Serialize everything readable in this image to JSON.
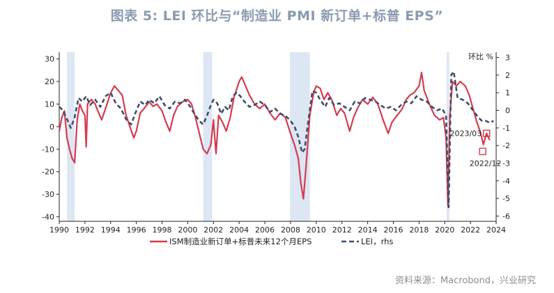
{
  "title": "图表 5:  LEI 环比与“制造业 PMI 新订单+标普 EPS”",
  "source": "资料来源：Macrobond，兴业研究",
  "chart_data": {
    "type": "line",
    "x_range": [
      1990,
      2024
    ],
    "x_ticks": [
      "1990",
      "1992",
      "1994",
      "1996",
      "1998",
      "2000",
      "2002",
      "2004",
      "2006",
      "2008",
      "2010",
      "2012",
      "2014",
      "2016",
      "2018",
      "2020",
      "2022",
      "2024"
    ],
    "left_axis": {
      "ylim": [
        -42,
        33
      ],
      "ticks": [
        "30",
        "20",
        "10",
        "0",
        "-10",
        "-20",
        "-30",
        "-40"
      ],
      "tick_values": [
        30,
        20,
        10,
        0,
        -10,
        -20,
        -30,
        -40
      ]
    },
    "right_axis": {
      "label": "环比 %",
      "ylim": [
        -6.3,
        3.3
      ],
      "ticks": [
        "3",
        "2",
        "1",
        "0",
        "-1",
        "-2",
        "-3",
        "-4",
        "-5",
        "-6"
      ],
      "tick_values": [
        3,
        2,
        1,
        0,
        -1,
        -2,
        -3,
        -4,
        -5,
        -6
      ]
    },
    "recessions": [
      [
        1990.6,
        1991.2
      ],
      [
        2001.2,
        2001.9
      ],
      [
        2007.95,
        2009.5
      ],
      [
        2020.15,
        2020.35
      ]
    ],
    "series": [
      {
        "name": "ISM制造业新订单+标普未来12个月EPS",
        "axis": "left",
        "color": "#d23c50",
        "style": "solid",
        "points": [
          [
            1990.0,
            -2
          ],
          [
            1990.2,
            4
          ],
          [
            1990.4,
            7
          ],
          [
            1990.6,
            -5
          ],
          [
            1990.8,
            -10
          ],
          [
            1991.0,
            -14
          ],
          [
            1991.2,
            -16
          ],
          [
            1991.4,
            3
          ],
          [
            1991.6,
            10
          ],
          [
            1991.8,
            7
          ],
          [
            1992.0,
            5
          ],
          [
            1992.1,
            -9
          ],
          [
            1992.2,
            10
          ],
          [
            1992.5,
            12
          ],
          [
            1992.8,
            10
          ],
          [
            1993.0,
            7
          ],
          [
            1993.3,
            3
          ],
          [
            1993.6,
            8
          ],
          [
            1994.0,
            15
          ],
          [
            1994.3,
            18
          ],
          [
            1994.6,
            16
          ],
          [
            1994.9,
            14
          ],
          [
            1995.2,
            5
          ],
          [
            1995.5,
            0
          ],
          [
            1995.8,
            -5
          ],
          [
            1996.0,
            -2
          ],
          [
            1996.3,
            6
          ],
          [
            1996.6,
            8
          ],
          [
            1997.0,
            11
          ],
          [
            1997.3,
            9
          ],
          [
            1997.6,
            10
          ],
          [
            1998.0,
            7
          ],
          [
            1998.3,
            2
          ],
          [
            1998.6,
            -2
          ],
          [
            1998.9,
            5
          ],
          [
            1999.2,
            9
          ],
          [
            1999.6,
            11
          ],
          [
            2000.0,
            12
          ],
          [
            2000.3,
            10
          ],
          [
            2000.6,
            4
          ],
          [
            2000.9,
            -3
          ],
          [
            2001.2,
            -10
          ],
          [
            2001.5,
            -12
          ],
          [
            2001.8,
            -8
          ],
          [
            2002.0,
            3
          ],
          [
            2002.2,
            -12
          ],
          [
            2002.4,
            5
          ],
          [
            2002.7,
            2
          ],
          [
            2003.0,
            -2
          ],
          [
            2003.3,
            4
          ],
          [
            2003.6,
            13
          ],
          [
            2004.0,
            20
          ],
          [
            2004.2,
            22
          ],
          [
            2004.5,
            18
          ],
          [
            2004.8,
            14
          ],
          [
            2005.2,
            10
          ],
          [
            2005.6,
            8
          ],
          [
            2006.0,
            10
          ],
          [
            2006.4,
            6
          ],
          [
            2006.8,
            3
          ],
          [
            2007.2,
            6
          ],
          [
            2007.6,
            4
          ],
          [
            2008.0,
            -3
          ],
          [
            2008.3,
            -8
          ],
          [
            2008.6,
            -14
          ],
          [
            2008.8,
            -25
          ],
          [
            2009.0,
            -32
          ],
          [
            2009.2,
            -18
          ],
          [
            2009.5,
            5
          ],
          [
            2009.8,
            15
          ],
          [
            2010.0,
            18
          ],
          [
            2010.3,
            17
          ],
          [
            2010.6,
            12
          ],
          [
            2010.9,
            15
          ],
          [
            2011.2,
            12
          ],
          [
            2011.6,
            5
          ],
          [
            2011.9,
            8
          ],
          [
            2012.2,
            6
          ],
          [
            2012.6,
            -2
          ],
          [
            2012.9,
            4
          ],
          [
            2013.2,
            8
          ],
          [
            2013.6,
            12
          ],
          [
            2014.0,
            10
          ],
          [
            2014.4,
            13
          ],
          [
            2014.8,
            10
          ],
          [
            2015.2,
            3
          ],
          [
            2015.6,
            -3
          ],
          [
            2015.9,
            2
          ],
          [
            2016.3,
            5
          ],
          [
            2016.7,
            8
          ],
          [
            2017.0,
            12
          ],
          [
            2017.3,
            14
          ],
          [
            2017.6,
            15
          ],
          [
            2018.0,
            18
          ],
          [
            2018.2,
            24
          ],
          [
            2018.4,
            16
          ],
          [
            2018.8,
            10
          ],
          [
            2019.2,
            5
          ],
          [
            2019.6,
            3
          ],
          [
            2019.9,
            4
          ],
          [
            2020.1,
            -5
          ],
          [
            2020.25,
            -35
          ],
          [
            2020.4,
            5
          ],
          [
            2020.6,
            20
          ],
          [
            2020.9,
            18
          ],
          [
            2021.2,
            20
          ],
          [
            2021.6,
            18
          ],
          [
            2021.9,
            14
          ],
          [
            2022.2,
            8
          ],
          [
            2022.5,
            2
          ],
          [
            2022.8,
            -3
          ],
          [
            2023.0,
            -8
          ],
          [
            2023.25,
            -3
          ],
          [
            2023.5,
            -6
          ]
        ]
      },
      {
        "name": "LEI，rhs",
        "axis": "right",
        "color": "#3f4d68",
        "style": "dashed",
        "points": [
          [
            1990.0,
            0.2
          ],
          [
            1990.3,
            0.0
          ],
          [
            1990.6,
            -0.5
          ],
          [
            1990.9,
            -1.0
          ],
          [
            1991.2,
            -0.4
          ],
          [
            1991.5,
            0.7
          ],
          [
            1991.8,
            0.5
          ],
          [
            1992.1,
            0.8
          ],
          [
            1992.4,
            0.3
          ],
          [
            1992.8,
            0.6
          ],
          [
            1993.2,
            0.2
          ],
          [
            1993.6,
            0.8
          ],
          [
            1994.0,
            1.0
          ],
          [
            1994.4,
            0.4
          ],
          [
            1994.8,
            0.1
          ],
          [
            1995.2,
            -0.5
          ],
          [
            1995.6,
            -0.8
          ],
          [
            1995.9,
            -0.2
          ],
          [
            1996.3,
            0.5
          ],
          [
            1996.7,
            0.3
          ],
          [
            1997.0,
            0.6
          ],
          [
            1997.4,
            0.4
          ],
          [
            1997.8,
            0.8
          ],
          [
            1998.2,
            0.3
          ],
          [
            1998.6,
            0.1
          ],
          [
            1999.0,
            0.5
          ],
          [
            1999.4,
            0.4
          ],
          [
            1999.8,
            0.6
          ],
          [
            2000.2,
            0.2
          ],
          [
            2000.6,
            -0.3
          ],
          [
            2000.9,
            -0.6
          ],
          [
            2001.2,
            -0.8
          ],
          [
            2001.5,
            -0.3
          ],
          [
            2001.8,
            0.3
          ],
          [
            2002.0,
            0.6
          ],
          [
            2002.3,
            0.4
          ],
          [
            2002.6,
            -0.2
          ],
          [
            2002.9,
            0.2
          ],
          [
            2003.2,
            0.0
          ],
          [
            2003.5,
            0.8
          ],
          [
            2003.8,
            1.0
          ],
          [
            2004.1,
            0.8
          ],
          [
            2004.4,
            0.5
          ],
          [
            2004.8,
            0.2
          ],
          [
            2005.2,
            0.3
          ],
          [
            2005.6,
            0.5
          ],
          [
            2006.0,
            0.3
          ],
          [
            2006.4,
            -0.1
          ],
          [
            2006.8,
            0.1
          ],
          [
            2007.2,
            -0.2
          ],
          [
            2007.6,
            -0.3
          ],
          [
            2008.0,
            -0.6
          ],
          [
            2008.3,
            -0.9
          ],
          [
            2008.6,
            -1.5
          ],
          [
            2008.9,
            -2.4
          ],
          [
            2009.1,
            -2.2
          ],
          [
            2009.4,
            -0.5
          ],
          [
            2009.7,
            1.1
          ],
          [
            2010.0,
            1.0
          ],
          [
            2010.3,
            0.6
          ],
          [
            2010.7,
            0.2
          ],
          [
            2011.0,
            0.7
          ],
          [
            2011.4,
            0.3
          ],
          [
            2011.8,
            0.4
          ],
          [
            2012.2,
            0.2
          ],
          [
            2012.6,
            0.0
          ],
          [
            2013.0,
            0.5
          ],
          [
            2013.4,
            0.4
          ],
          [
            2013.8,
            0.7
          ],
          [
            2014.2,
            0.6
          ],
          [
            2014.6,
            0.5
          ],
          [
            2015.0,
            0.3
          ],
          [
            2015.4,
            0.1
          ],
          [
            2015.8,
            0.2
          ],
          [
            2016.2,
            0.0
          ],
          [
            2016.6,
            0.3
          ],
          [
            2017.0,
            0.5
          ],
          [
            2017.4,
            0.4
          ],
          [
            2017.8,
            0.8
          ],
          [
            2018.2,
            0.6
          ],
          [
            2018.6,
            0.5
          ],
          [
            2019.0,
            0.2
          ],
          [
            2019.4,
            0.0
          ],
          [
            2019.8,
            0.1
          ],
          [
            2020.1,
            -0.3
          ],
          [
            2020.3,
            -5.5
          ],
          [
            2020.5,
            2.0
          ],
          [
            2020.7,
            2.2
          ],
          [
            2021.0,
            0.7
          ],
          [
            2021.4,
            0.6
          ],
          [
            2021.8,
            0.4
          ],
          [
            2022.2,
            0.0
          ],
          [
            2022.6,
            -0.4
          ],
          [
            2022.9,
            -0.6
          ],
          [
            2023.2,
            -0.6
          ],
          [
            2023.5,
            -0.7
          ],
          [
            2023.8,
            -0.6
          ]
        ]
      }
    ],
    "annotations": [
      {
        "label": "2023/03",
        "x": 2023.25,
        "y": -3,
        "axis": "left",
        "label_side": "left"
      },
      {
        "label": "2022/12",
        "x": 2022.95,
        "y": -11,
        "axis": "left",
        "label_side": "below"
      }
    ]
  }
}
